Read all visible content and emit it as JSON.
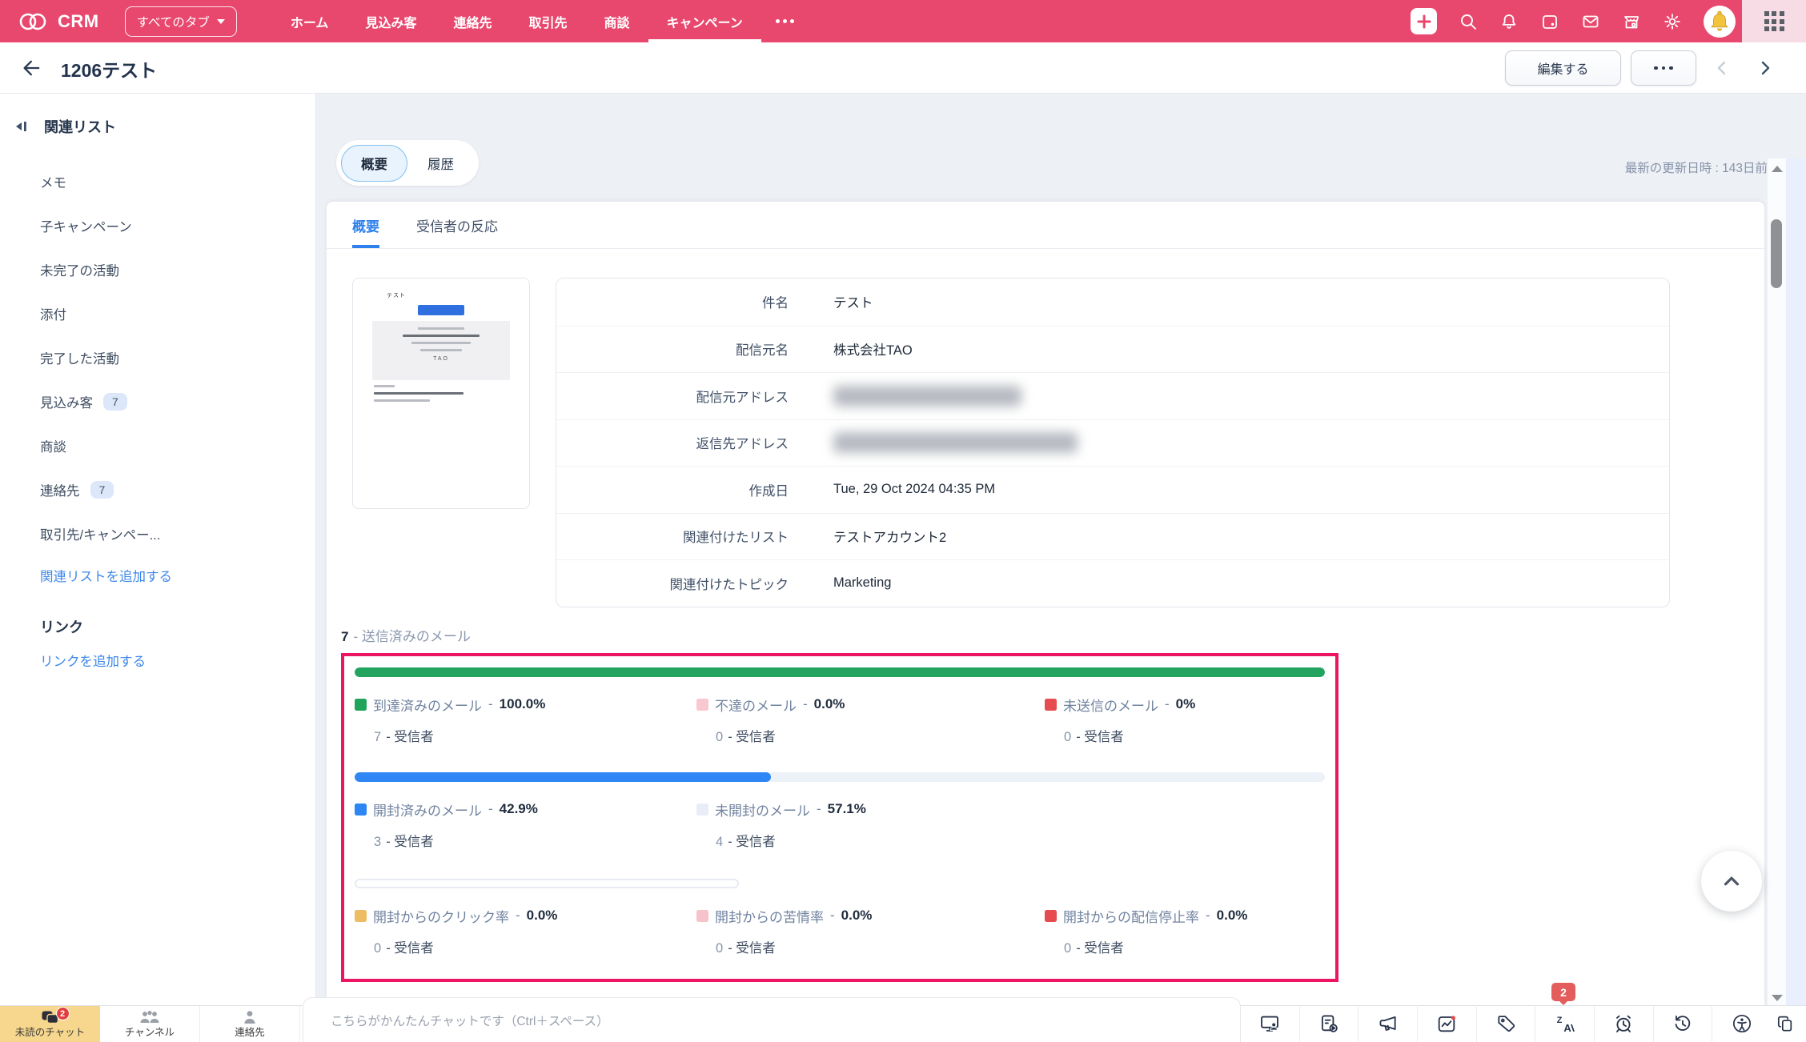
{
  "navbar": {
    "brand": "CRM",
    "tabs_dropdown": "すべてのタブ",
    "tabs": [
      "ホーム",
      "見込み客",
      "連絡先",
      "取引先",
      "商談",
      "キャンペーン"
    ],
    "active_tab": "キャンペーン"
  },
  "header": {
    "title": "1206テスト",
    "edit_button": "編集する"
  },
  "sidebar": {
    "title": "関連リスト",
    "items": [
      {
        "label": "メモ",
        "badge": ""
      },
      {
        "label": "子キャンペーン",
        "badge": ""
      },
      {
        "label": "未完了の活動",
        "badge": ""
      },
      {
        "label": "添付",
        "badge": ""
      },
      {
        "label": "完了した活動",
        "badge": ""
      },
      {
        "label": "見込み客",
        "badge": "7"
      },
      {
        "label": "商談",
        "badge": ""
      },
      {
        "label": "連絡先",
        "badge": "7"
      },
      {
        "label": "取引先/キャンペー...",
        "badge": ""
      }
    ],
    "add_related_link": "関連リストを追加する",
    "links_title": "リンク",
    "add_link": "リンクを追加する"
  },
  "toolbar": {
    "view_tabs": [
      "概要",
      "履歴"
    ],
    "updated": "最新の更新日時 : 143日前"
  },
  "overview": {
    "tabs": [
      "概要",
      "受信者の反応"
    ],
    "thumbnail": {
      "title": "テスト",
      "brand": "TAO"
    },
    "details": [
      {
        "label": "件名",
        "value": "テスト"
      },
      {
        "label": "配信元名",
        "value": "株式会社TAO"
      },
      {
        "label": "配信元アドレス",
        "value": "",
        "redacted": true
      },
      {
        "label": "返信先アドレス",
        "value": "",
        "redacted": true
      },
      {
        "label": "作成日",
        "value": "Tue, 29 Oct 2024 04:35 PM"
      },
      {
        "label": "関連付けたリスト",
        "value": "テストアカウント2"
      },
      {
        "label": "関連付けたトピック",
        "value": "Marketing"
      }
    ]
  },
  "email_stats": {
    "heading_count": "7",
    "heading_label": "- 送信済みのメール",
    "highlight_border": "#ec1562",
    "groups": [
      {
        "bar": {
          "fill": 100,
          "color": "#23a45e",
          "track": "transparent"
        },
        "cells": [
          {
            "swatch": "#21a35c",
            "label": "到達済みのメール",
            "sep": "-",
            "value": "100.0%",
            "count": "7",
            "count_label": "- 受信者"
          },
          {
            "swatch": "#f7c8cf",
            "label": "不達のメール",
            "sep": "-",
            "value": "0.0%",
            "count": "0",
            "count_label": "- 受信者"
          },
          {
            "swatch": "#e64c4f",
            "label": "未送信のメール",
            "sep": "-",
            "value": "0%",
            "count": "0",
            "count_label": "- 受信者"
          }
        ]
      },
      {
        "bar": {
          "fill": 42.9,
          "color": "#2f86f5",
          "track": "#edf1f8"
        },
        "cells": [
          {
            "swatch": "#2e86f5",
            "label": "開封済みのメール",
            "sep": "-",
            "value": "42.9%",
            "count": "3",
            "count_label": "- 受信者"
          },
          {
            "swatch": "#e9edf8",
            "label": "未開封のメール",
            "sep": "-",
            "value": "57.1%",
            "count": "4",
            "count_label": "- 受信者"
          }
        ]
      },
      {
        "bar": {
          "fill": 0,
          "color": "#ffffff",
          "track": "#ffffff"
        },
        "cells": [
          {
            "swatch": "#eebc63",
            "label": "開封からのクリック率",
            "sep": "-",
            "value": "0.0%",
            "count": "0",
            "count_label": "- 受信者"
          },
          {
            "swatch": "#f7c3cb",
            "label": "開封からの苦情率",
            "sep": "-",
            "value": "0.0%",
            "count": "0",
            "count_label": "- 受信者"
          },
          {
            "swatch": "#e64c4f",
            "label": "開封からの配信停止率",
            "sep": "-",
            "value": "0.0%",
            "count": "0",
            "count_label": "- 受信者"
          }
        ]
      }
    ]
  },
  "chat_bar": {
    "tabs": [
      {
        "label": "未読のチャット",
        "badge": "2"
      },
      {
        "label": "チャンネル",
        "badge": ""
      },
      {
        "label": "連絡先",
        "badge": ""
      }
    ],
    "placeholder": "こちらがかんたんチャットです（Ctrl＋スペース）",
    "notification_badge": "2"
  }
}
